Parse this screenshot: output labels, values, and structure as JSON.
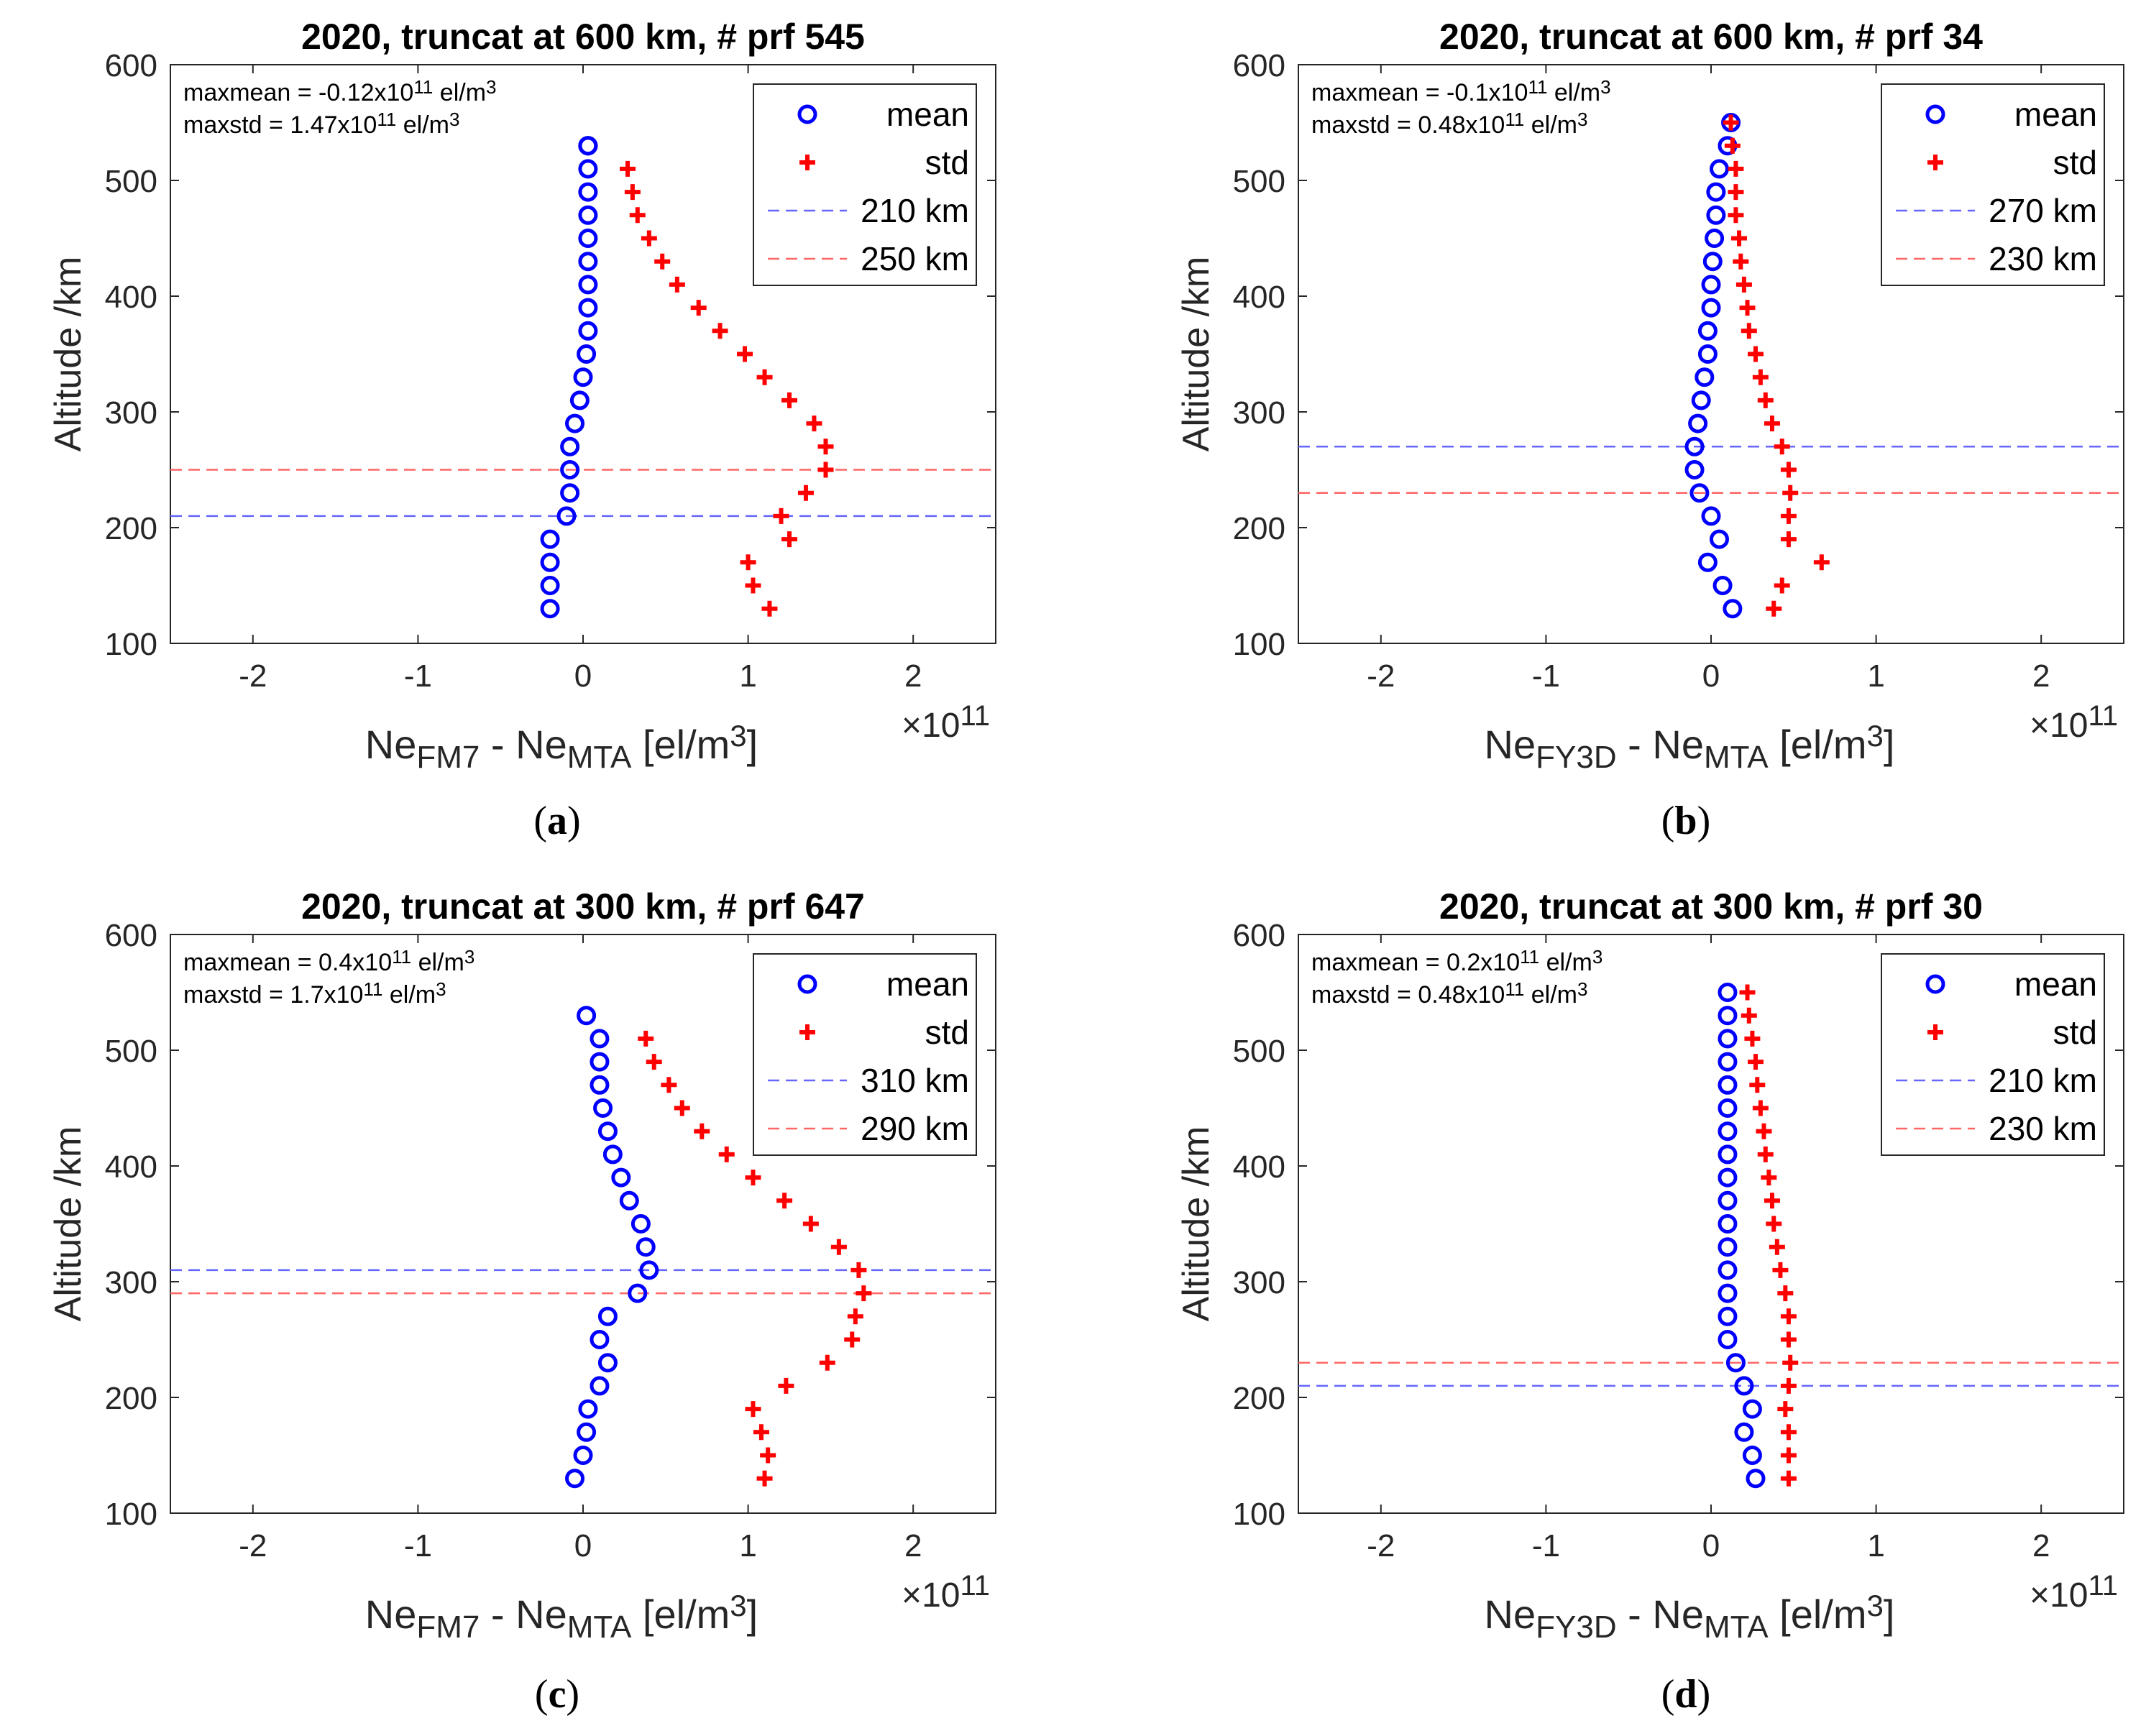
{
  "chart_data": [
    {
      "panel": "(a)",
      "type": "scatter",
      "title": "2020, truncat at 600 km, # prf 545",
      "ylabel": "Altitude /km",
      "xlabel_main": "Ne",
      "xlabel_sub1": "FM7",
      "xlabel_mid": " - Ne",
      "xlabel_sub2": "MTA",
      "xlabel_unit": " [el/m",
      "xlabel_unit_sup": "3",
      "xlabel_close": "]",
      "xexp_base": "×10",
      "xexp_pow": "11",
      "xlim": [
        -2.5,
        2.5
      ],
      "ylim": [
        100,
        600
      ],
      "xticks": [
        -2,
        -1,
        0,
        1,
        2
      ],
      "yticks": [
        100,
        200,
        300,
        400,
        500,
        600
      ],
      "annotation": [
        {
          "pre": "maxmean = -0.12x10",
          "sup": "11",
          "post": " el/m",
          "sup2": "3"
        },
        {
          "pre": "maxstd = 1.47x10",
          "sup": "11",
          "post": " el/m",
          "sup2": "3"
        }
      ],
      "legend_position": "top-right",
      "series": [
        {
          "name": "mean",
          "marker": "circle",
          "color": "#0000ff",
          "x": [
            -0.2,
            -0.2,
            -0.2,
            -0.2,
            -0.1,
            -0.08,
            -0.08,
            -0.08,
            -0.05,
            -0.02,
            0,
            0.02,
            0.03,
            0.03,
            0.03,
            0.03,
            0.03,
            0.03,
            0.03,
            0.03,
            0.03,
            0.03,
            0.03
          ],
          "y": [
            130,
            150,
            170,
            190,
            210,
            230,
            250,
            270,
            290,
            310,
            330,
            350,
            370,
            390,
            410,
            430,
            450,
            470,
            490,
            510,
            530,
            530,
            530
          ]
        },
        {
          "name": "std",
          "marker": "plus",
          "color": "#ff0000",
          "x": [
            1.13,
            1.03,
            1.0,
            1.25,
            1.2,
            1.35,
            1.47,
            1.47,
            1.4,
            1.25,
            1.1,
            0.98,
            0.83,
            0.7,
            0.57,
            0.48,
            0.4,
            0.33,
            0.3,
            0.27
          ],
          "y": [
            130,
            150,
            170,
            190,
            210,
            230,
            250,
            270,
            290,
            310,
            330,
            350,
            370,
            390,
            410,
            430,
            450,
            470,
            490,
            510
          ]
        }
      ],
      "hlines": [
        {
          "name": "210 km",
          "y": 210,
          "color": "#6666ff"
        },
        {
          "name": "250 km",
          "y": 250,
          "color": "#ff6666"
        }
      ]
    },
    {
      "panel": "(b)",
      "type": "scatter",
      "title": "2020, truncat at 600 km, # prf 34",
      "ylabel": "Altitude /km",
      "xlabel_main": "Ne",
      "xlabel_sub1": "FY3D",
      "xlabel_mid": " - Ne",
      "xlabel_sub2": "MTA",
      "xlabel_unit": " [el/m",
      "xlabel_unit_sup": "3",
      "xlabel_close": "]",
      "xexp_base": "×10",
      "xexp_pow": "11",
      "xlim": [
        -2.5,
        2.5
      ],
      "ylim": [
        100,
        600
      ],
      "xticks": [
        -2,
        -1,
        0,
        1,
        2
      ],
      "yticks": [
        100,
        200,
        300,
        400,
        500,
        600
      ],
      "annotation": [
        {
          "pre": "maxmean = -0.1x10",
          "sup": "11",
          "post": " el/m",
          "sup2": "3"
        },
        {
          "pre": "maxstd = 0.48x10",
          "sup": "11",
          "post": " el/m",
          "sup2": "3"
        }
      ],
      "legend_position": "top-right",
      "series": [
        {
          "name": "mean",
          "marker": "circle",
          "color": "#0000ff",
          "x": [
            0.13,
            0.07,
            -0.02,
            0.05,
            0.0,
            -0.07,
            -0.1,
            -0.1,
            -0.08,
            -0.06,
            -0.04,
            -0.02,
            -0.02,
            0.0,
            0.0,
            0.01,
            0.02,
            0.03,
            0.03,
            0.05,
            0.1,
            0.12
          ],
          "y": [
            130,
            150,
            170,
            190,
            210,
            230,
            250,
            270,
            290,
            310,
            330,
            350,
            370,
            390,
            410,
            430,
            450,
            470,
            490,
            510,
            530,
            550
          ]
        },
        {
          "name": "std",
          "marker": "plus",
          "color": "#ff0000",
          "x": [
            0.38,
            0.43,
            0.67,
            0.47,
            0.47,
            0.48,
            0.47,
            0.43,
            0.37,
            0.33,
            0.3,
            0.27,
            0.23,
            0.22,
            0.2,
            0.18,
            0.17,
            0.15,
            0.15,
            0.15,
            0.13,
            0.12
          ],
          "y": [
            130,
            150,
            170,
            190,
            210,
            230,
            250,
            270,
            290,
            310,
            330,
            350,
            370,
            390,
            410,
            430,
            450,
            470,
            490,
            510,
            530,
            550
          ]
        }
      ],
      "hlines": [
        {
          "name": "270 km",
          "y": 270,
          "color": "#6666ff"
        },
        {
          "name": "230 km",
          "y": 230,
          "color": "#ff6666"
        }
      ]
    },
    {
      "panel": "(c)",
      "type": "scatter",
      "title": "2020, truncat at 300 km, # prf 647",
      "ylabel": "Altitude /km",
      "xlabel_main": "Ne",
      "xlabel_sub1": "FM7",
      "xlabel_mid": " - Ne",
      "xlabel_sub2": "MTA",
      "xlabel_unit": " [el/m",
      "xlabel_unit_sup": "3",
      "xlabel_close": "]",
      "xexp_base": "×10",
      "xexp_pow": "11",
      "xlim": [
        -2.5,
        2.5
      ],
      "ylim": [
        100,
        600
      ],
      "xticks": [
        -2,
        -1,
        0,
        1,
        2
      ],
      "yticks": [
        100,
        200,
        300,
        400,
        500,
        600
      ],
      "annotation": [
        {
          "pre": "maxmean = 0.4x10",
          "sup": "11",
          "post": " el/m",
          "sup2": "3"
        },
        {
          "pre": "maxstd = 1.7x10",
          "sup": "11",
          "post": " el/m",
          "sup2": "3"
        }
      ],
      "legend_position": "top-right",
      "series": [
        {
          "name": "mean",
          "marker": "circle",
          "color": "#0000ff",
          "x": [
            -0.05,
            0.0,
            0.02,
            0.03,
            0.1,
            0.15,
            0.1,
            0.15,
            0.33,
            0.4,
            0.38,
            0.35,
            0.28,
            0.23,
            0.18,
            0.15,
            0.12,
            0.1,
            0.1,
            0.1,
            0.02
          ],
          "y": [
            130,
            150,
            170,
            190,
            210,
            230,
            250,
            270,
            290,
            310,
            330,
            350,
            370,
            390,
            410,
            430,
            450,
            470,
            490,
            510,
            530
          ]
        },
        {
          "name": "std",
          "marker": "plus",
          "color": "#ff0000",
          "x": [
            1.1,
            1.12,
            1.08,
            1.03,
            1.23,
            1.48,
            1.63,
            1.65,
            1.7,
            1.67,
            1.55,
            1.38,
            1.22,
            1.03,
            0.87,
            0.72,
            0.6,
            0.52,
            0.43,
            0.38
          ],
          "y": [
            130,
            150,
            170,
            190,
            210,
            230,
            250,
            270,
            290,
            310,
            330,
            350,
            370,
            390,
            410,
            430,
            450,
            470,
            490,
            510
          ]
        }
      ],
      "hlines": [
        {
          "name": "310 km",
          "y": 310,
          "color": "#6666ff"
        },
        {
          "name": "290 km",
          "y": 290,
          "color": "#ff6666"
        }
      ]
    },
    {
      "panel": "(d)",
      "type": "scatter",
      "title": "2020, truncat at 300 km, # prf 30",
      "ylabel": "Altitude /km",
      "xlabel_main": "Ne",
      "xlabel_sub1": "FY3D",
      "xlabel_mid": " - Ne",
      "xlabel_sub2": "MTA",
      "xlabel_unit": " [el/m",
      "xlabel_unit_sup": "3",
      "xlabel_close": "]",
      "xexp_base": "×10",
      "xexp_pow": "11",
      "xlim": [
        -2.5,
        2.5
      ],
      "ylim": [
        100,
        600
      ],
      "xticks": [
        -2,
        -1,
        0,
        1,
        2
      ],
      "yticks": [
        100,
        200,
        300,
        400,
        500,
        600
      ],
      "annotation": [
        {
          "pre": "maxmean = 0.2x10",
          "sup": "11",
          "post": " el/m",
          "sup2": "3"
        },
        {
          "pre": "maxstd = 0.48x10",
          "sup": "11",
          "post": " el/m",
          "sup2": "3"
        }
      ],
      "legend_position": "top-right",
      "series": [
        {
          "name": "mean",
          "marker": "circle",
          "color": "#0000ff",
          "x": [
            0.27,
            0.25,
            0.2,
            0.25,
            0.2,
            0.15,
            0.1,
            0.1,
            0.1,
            0.1,
            0.1,
            0.1,
            0.1,
            0.1,
            0.1,
            0.1,
            0.1,
            0.1,
            0.1,
            0.1,
            0.1,
            0.1
          ],
          "y": [
            130,
            150,
            170,
            190,
            210,
            230,
            250,
            270,
            290,
            310,
            330,
            350,
            370,
            390,
            410,
            430,
            450,
            470,
            490,
            510,
            530,
            550
          ]
        },
        {
          "name": "std",
          "marker": "plus",
          "color": "#ff0000",
          "x": [
            0.47,
            0.47,
            0.47,
            0.45,
            0.47,
            0.48,
            0.47,
            0.47,
            0.45,
            0.42,
            0.4,
            0.38,
            0.37,
            0.35,
            0.33,
            0.32,
            0.3,
            0.28,
            0.27,
            0.25,
            0.23,
            0.22
          ],
          "y": [
            130,
            150,
            170,
            190,
            210,
            230,
            250,
            270,
            290,
            310,
            330,
            350,
            370,
            390,
            410,
            430,
            450,
            470,
            490,
            510,
            530,
            550
          ]
        }
      ],
      "hlines": [
        {
          "name": "210 km",
          "y": 210,
          "color": "#6666ff"
        },
        {
          "name": "230 km",
          "y": 230,
          "color": "#ff6666"
        }
      ]
    }
  ]
}
